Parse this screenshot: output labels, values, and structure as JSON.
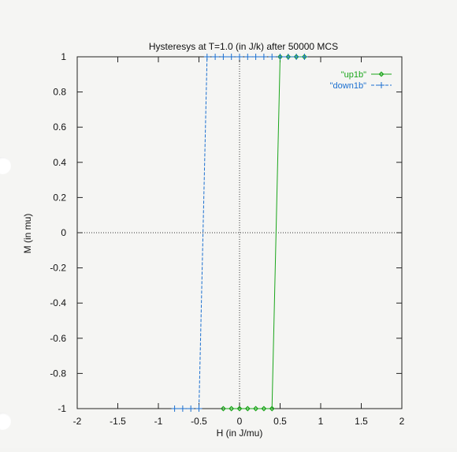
{
  "chart_data": {
    "type": "line",
    "title": "Hysteresys at T=1.0 (in J/k) after 50000 MCS",
    "xlabel": "H (in J/mu)",
    "ylabel": "M (in mu)",
    "xlim": [
      -2,
      2
    ],
    "ylim": [
      -1,
      1
    ],
    "xticks": [
      -2,
      -1.5,
      -1,
      -0.5,
      0,
      0.5,
      1,
      1.5,
      2
    ],
    "xtick_labels": [
      "-2",
      "-1.5",
      "-1",
      "-0.5",
      "0",
      "0.5",
      "1",
      "1.5",
      "2"
    ],
    "yticks": [
      -1,
      -0.8,
      -0.6,
      -0.4,
      -0.2,
      0,
      0.2,
      0.4,
      0.6,
      0.8,
      1
    ],
    "ytick_labels": [
      "-1",
      "-0.8",
      "-0.6",
      "-0.4",
      "-0.2",
      "0",
      "0.2",
      "0.4",
      "0.6",
      "0.8",
      "1"
    ],
    "grid": false,
    "zero_axes": true,
    "legend_position": "top-right",
    "series": [
      {
        "name": "\"up1b\"",
        "color": "#1aa51a",
        "marker": "diamond",
        "line_style": "solid",
        "x": [
          -0.2,
          -0.1,
          0.0,
          0.1,
          0.2,
          0.3,
          0.4,
          0.5,
          0.6,
          0.7,
          0.8
        ],
        "y": [
          -1,
          -1,
          -1,
          -1,
          -1,
          -1,
          -1,
          1,
          1,
          1,
          1
        ]
      },
      {
        "name": "\"down1b\"",
        "color": "#1a6fd0",
        "marker": "plus",
        "line_style": "dashed",
        "x": [
          0.8,
          0.7,
          0.6,
          0.5,
          0.4,
          0.3,
          0.2,
          0.1,
          0.0,
          -0.1,
          -0.2,
          -0.3,
          -0.4,
          -0.5,
          -0.6,
          -0.7,
          -0.8
        ],
        "y": [
          1,
          1,
          1,
          1,
          1,
          1,
          1,
          1,
          1,
          1,
          1,
          1,
          1,
          -1,
          -1,
          -1,
          -1
        ]
      }
    ]
  }
}
